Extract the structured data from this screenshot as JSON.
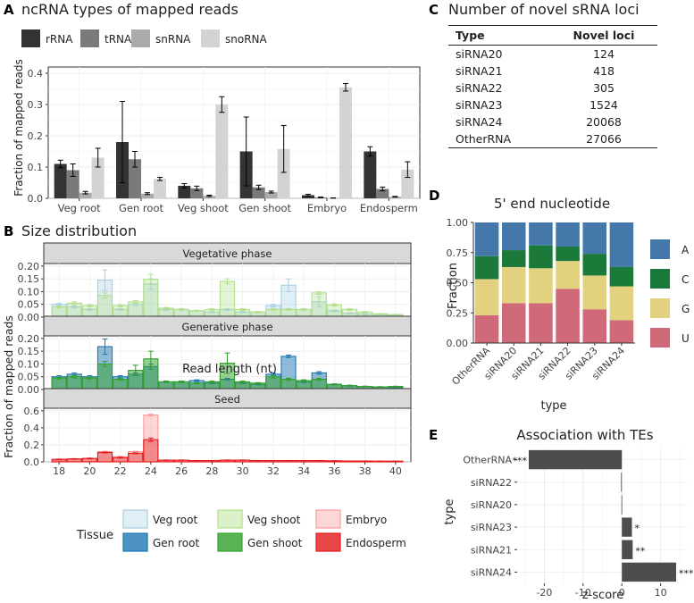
{
  "colors": {
    "rRNA": "#333333",
    "tRNA": "#7a7a7a",
    "snRNA": "#ababab",
    "snoRNA": "#d3d3d3",
    "veg_root": "#a6cee3",
    "gen_root": "#1f78b4",
    "veg_shoot": "#b2df8a",
    "gen_shoot": "#33a02c",
    "embryo": "#fb9a99",
    "endosperm": "#e31a1c",
    "A": "#4477aa",
    "C": "#1b7a3a",
    "G": "#e2d17e",
    "U": "#d06a78"
  },
  "panelA": {
    "label": "A",
    "title": "ncRNA types of mapped reads",
    "ylabel": "Fraction of mapped reads",
    "chart_data": {
      "type": "bar",
      "categories": [
        "Veg root",
        "Gen root",
        "Veg shoot",
        "Gen shoot",
        "Embryo",
        "Endosperm"
      ],
      "series": [
        {
          "name": "rRNA",
          "values": [
            0.11,
            0.18,
            0.04,
            0.15,
            0.01,
            0.15
          ],
          "err": [
            0.012,
            0.13,
            0.007,
            0.11,
            0.003,
            0.015
          ]
        },
        {
          "name": "tRNA",
          "values": [
            0.09,
            0.125,
            0.032,
            0.035,
            0.003,
            0.03
          ],
          "err": [
            0.02,
            0.025,
            0.007,
            0.007,
            0.001,
            0.006
          ]
        },
        {
          "name": "snRNA",
          "values": [
            0.018,
            0.015,
            0.008,
            0.02,
            0.001,
            0.005
          ],
          "err": [
            0.004,
            0.003,
            0.002,
            0.003,
            0.0005,
            0.001
          ]
        },
        {
          "name": "snoRNA",
          "values": [
            0.13,
            0.062,
            0.3,
            0.158,
            0.355,
            0.092
          ],
          "err": [
            0.03,
            0.005,
            0.025,
            0.075,
            0.012,
            0.025
          ]
        }
      ],
      "yticks": [
        "0.0",
        "0.1",
        "0.2",
        "0.3",
        "0.4"
      ],
      "ylim": [
        0,
        0.42
      ]
    }
  },
  "panelB": {
    "label": "B",
    "title": "Size distribution",
    "ylabel": "Fraction of mapped reads",
    "xlabel": "Read length (nt)",
    "xticks": [
      "18",
      "20",
      "22",
      "24",
      "26",
      "28",
      "30",
      "32",
      "34",
      "36",
      "38",
      "40"
    ],
    "legend_title": "Tissue",
    "legend_items": [
      "Veg root",
      "Veg shoot",
      "Embryo",
      "Gen root",
      "Gen shoot",
      "Endosperm"
    ],
    "chart_data": {
      "type": "bar",
      "x": [
        18,
        19,
        20,
        21,
        22,
        23,
        24,
        25,
        26,
        27,
        28,
        29,
        30,
        31,
        32,
        33,
        34,
        35,
        36,
        37,
        38,
        39,
        40
      ],
      "facets": [
        {
          "name": "Vegetative phase",
          "yticks": [
            "0.00",
            "0.05",
            "0.10",
            "0.15",
            "0.20"
          ],
          "ylim": [
            0,
            0.21
          ],
          "series": [
            {
              "name": "Veg root",
              "values": [
                0.05,
                0.04,
                0.03,
                0.145,
                0.03,
                0.05,
                0.13,
                0.03,
                0.03,
                0.025,
                0.02,
                0.03,
                0.02,
                0.02,
                0.045,
                0.125,
                0.03,
                0.06,
                0.025,
                0.015,
                0.012,
                0.01,
                0.008
              ],
              "err": [
                0.005,
                0.004,
                0.003,
                0.04,
                0.003,
                0.005,
                0.02,
                0.003,
                0.003,
                0.002,
                0.002,
                0.003,
                0.002,
                0.002,
                0.005,
                0.025,
                0.003,
                0.02,
                0.003,
                0.002,
                0.002,
                0.001,
                0.001
              ]
            },
            {
              "name": "Veg shoot",
              "values": [
                0.04,
                0.055,
                0.045,
                0.085,
                0.045,
                0.06,
                0.148,
                0.035,
                0.03,
                0.025,
                0.03,
                0.14,
                0.03,
                0.02,
                0.03,
                0.03,
                0.03,
                0.095,
                0.048,
                0.03,
                0.02,
                0.013,
                0.01
              ],
              "err": [
                0.004,
                0.005,
                0.004,
                0.01,
                0.004,
                0.005,
                0.02,
                0.003,
                0.003,
                0.002,
                0.003,
                0.01,
                0.003,
                0.002,
                0.003,
                0.003,
                0.003,
                0.005,
                0.004,
                0.003,
                0.002,
                0.001,
                0.001
              ]
            }
          ]
        },
        {
          "name": "Generative phase",
          "yticks": [
            "0.00",
            "0.05",
            "0.10",
            "0.15",
            "0.20"
          ],
          "ylim": [
            0,
            0.21
          ],
          "series": [
            {
              "name": "Gen root",
              "values": [
                0.05,
                0.06,
                0.05,
                0.168,
                0.05,
                0.06,
                0.09,
                0.03,
                0.03,
                0.035,
                0.025,
                0.04,
                0.025,
                0.02,
                0.06,
                0.13,
                0.03,
                0.065,
                0.02,
                0.015,
                0.012,
                0.01,
                0.008
              ],
              "err": [
                0.004,
                0.005,
                0.004,
                0.03,
                0.004,
                0.005,
                0.01,
                0.003,
                0.003,
                0.003,
                0.002,
                0.004,
                0.002,
                0.002,
                0.005,
                0.005,
                0.003,
                0.005,
                0.002,
                0.002,
                0.001,
                0.001,
                0.001
              ]
            },
            {
              "name": "Gen shoot",
              "values": [
                0.045,
                0.05,
                0.045,
                0.1,
                0.04,
                0.075,
                0.12,
                0.03,
                0.03,
                0.025,
                0.03,
                0.103,
                0.03,
                0.025,
                0.05,
                0.04,
                0.035,
                0.04,
                0.02,
                0.015,
                0.012,
                0.01,
                0.012
              ],
              "err": [
                0.004,
                0.005,
                0.004,
                0.01,
                0.004,
                0.02,
                0.03,
                0.003,
                0.003,
                0.002,
                0.003,
                0.04,
                0.003,
                0.002,
                0.005,
                0.004,
                0.003,
                0.004,
                0.002,
                0.002,
                0.001,
                0.001,
                0.001
              ]
            }
          ]
        },
        {
          "name": "Seed",
          "yticks": [
            "0.0",
            "0.2",
            "0.4",
            "0.6"
          ],
          "ylim": [
            0,
            0.63
          ],
          "series": [
            {
              "name": "Embryo",
              "values": [
                0.02,
                0.03,
                0.04,
                0.12,
                0.06,
                0.12,
                0.55,
                0.02,
                0.02,
                0.015,
                0.015,
                0.02,
                0.02,
                0.015,
                0.015,
                0.015,
                0.015,
                0.015,
                0.012,
                0.01,
                0.01,
                0.008,
                0.008
              ],
              "err": [
                0.002,
                0.003,
                0.004,
                0.005,
                0.005,
                0.005,
                0.01,
                0.002,
                0.002,
                0.001,
                0.001,
                0.002,
                0.002,
                0.001,
                0.001,
                0.001,
                0.001,
                0.001,
                0.001,
                0.001,
                0.001,
                0.001,
                0.001
              ]
            },
            {
              "name": "Endosperm",
              "values": [
                0.03,
                0.035,
                0.04,
                0.11,
                0.05,
                0.1,
                0.26,
                0.02,
                0.02,
                0.015,
                0.015,
                0.02,
                0.02,
                0.015,
                0.015,
                0.015,
                0.015,
                0.015,
                0.012,
                0.01,
                0.01,
                0.008,
                0.008
              ],
              "err": [
                0.003,
                0.003,
                0.004,
                0.005,
                0.005,
                0.005,
                0.02,
                0.002,
                0.002,
                0.001,
                0.001,
                0.002,
                0.002,
                0.001,
                0.001,
                0.001,
                0.001,
                0.001,
                0.001,
                0.001,
                0.001,
                0.001,
                0.001
              ]
            }
          ]
        }
      ]
    }
  },
  "panelC": {
    "label": "C",
    "title": "Number of novel sRNA loci",
    "chart_data": {
      "type": "table",
      "headers": [
        "Type",
        "Novel loci"
      ],
      "rows": [
        [
          "siRNA20",
          "124"
        ],
        [
          "siRNA21",
          "418"
        ],
        [
          "siRNA22",
          "305"
        ],
        [
          "siRNA23",
          "1524"
        ],
        [
          "siRNA24",
          "20068"
        ],
        [
          "OtherRNA",
          "27066"
        ]
      ]
    }
  },
  "panelD": {
    "label": "D",
    "title": "5' end nucleotide",
    "ylabel": "Fraction",
    "xlabel": "type",
    "chart_data": {
      "type": "bar",
      "stacked": true,
      "categories": [
        "OtherRNA",
        "siRNA20",
        "siRNA21",
        "siRNA22",
        "siRNA23",
        "siRNA24"
      ],
      "series": [
        {
          "name": "U",
          "values": [
            0.23,
            0.33,
            0.33,
            0.45,
            0.28,
            0.19
          ]
        },
        {
          "name": "G",
          "values": [
            0.3,
            0.3,
            0.29,
            0.23,
            0.28,
            0.28
          ]
        },
        {
          "name": "C",
          "values": [
            0.19,
            0.14,
            0.19,
            0.12,
            0.18,
            0.16
          ]
        },
        {
          "name": "A",
          "values": [
            0.28,
            0.23,
            0.19,
            0.2,
            0.26,
            0.37
          ]
        }
      ],
      "legend": [
        "A",
        "C",
        "G",
        "U"
      ],
      "yticks": [
        "0.00",
        "0.25",
        "0.50",
        "0.75",
        "1.00"
      ],
      "ylim": [
        0,
        1
      ]
    }
  },
  "panelE": {
    "label": "E",
    "title": "Association with TEs",
    "ylabel": "type",
    "xlabel": "z-score",
    "chart_data": {
      "type": "bar",
      "orientation": "horizontal",
      "categories": [
        "OtherRNA",
        "siRNA22",
        "siRNA20",
        "siRNA23",
        "siRNA21",
        "siRNA24"
      ],
      "values": [
        -24,
        -0.2,
        -0.1,
        2.6,
        2.8,
        14
      ],
      "significance": [
        "***",
        "",
        "",
        "*",
        "**",
        "***"
      ],
      "xticks": [
        "-20",
        "-10",
        "0",
        "10"
      ],
      "xlim": [
        -27,
        17
      ]
    }
  }
}
